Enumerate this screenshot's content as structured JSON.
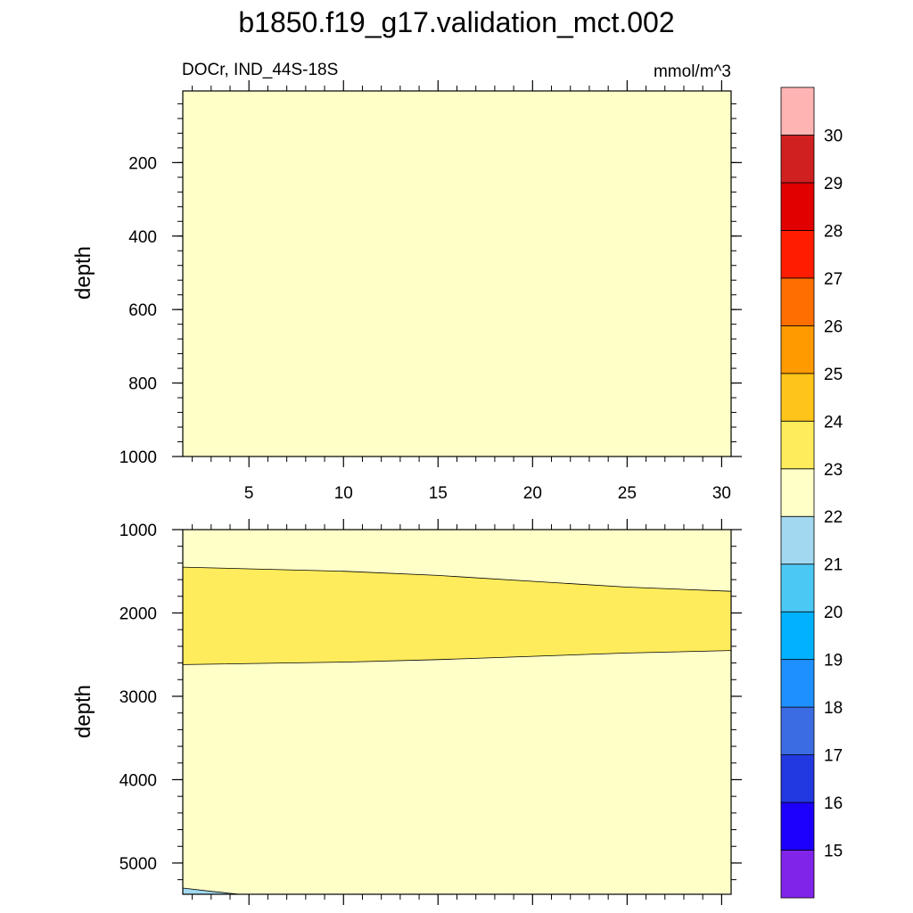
{
  "title": "b1850.f19_g17.validation_mct.002",
  "left_label": "DOCr, IND_44S-18S",
  "right_label": "mmol/m^3",
  "chart_data": {
    "type": "contour",
    "x": {
      "range": [
        1.5,
        30.5
      ],
      "ticks": [
        5,
        10,
        15,
        20,
        25,
        30
      ],
      "tick_labels": [
        "5",
        "10",
        "15",
        "20",
        "25",
        "30"
      ]
    },
    "panels": [
      {
        "ylabel": "depth",
        "ylim": [
          1000,
          5
        ],
        "yticks": [
          200,
          400,
          600,
          800,
          1000
        ],
        "ytick_labels": [
          "200",
          "400",
          "600",
          "800",
          "1000"
        ],
        "background_level": "22-23",
        "regions": []
      },
      {
        "ylabel": "depth",
        "ylim": [
          5375,
          1000
        ],
        "yticks": [
          1000,
          2000,
          3000,
          4000,
          5000
        ],
        "ytick_labels": [
          "1000",
          "2000",
          "3000",
          "4000",
          "5000"
        ],
        "background_level": "22-23",
        "regions": [
          {
            "level": "23-24",
            "upper": [
              [
                1.5,
                1450
              ],
              [
                10,
                1500
              ],
              [
                15,
                1550
              ],
              [
                20,
                1620
              ],
              [
                25,
                1690
              ],
              [
                30.5,
                1740
              ]
            ],
            "lower": [
              [
                1.5,
                2620
              ],
              [
                10,
                2590
              ],
              [
                15,
                2560
              ],
              [
                20,
                2520
              ],
              [
                25,
                2480
              ],
              [
                30.5,
                2450
              ]
            ]
          },
          {
            "level": "21-22",
            "upper": [
              [
                1.5,
                5300
              ],
              [
                3,
                5340
              ],
              [
                4.5,
                5375
              ]
            ],
            "lower": [
              [
                1.5,
                5375
              ]
            ]
          }
        ]
      }
    ],
    "colorbar": {
      "levels": [
        15,
        16,
        17,
        18,
        19,
        20,
        21,
        22,
        23,
        24,
        25,
        26,
        27,
        28,
        29,
        30
      ],
      "labels": [
        "15",
        "16",
        "17",
        "18",
        "19",
        "20",
        "21",
        "22",
        "23",
        "24",
        "25",
        "26",
        "27",
        "28",
        "29",
        "30"
      ],
      "colors": [
        "#8024EA",
        "#1C00FB",
        "#2238E0",
        "#3C6CE4",
        "#1E90FF",
        "#00B2FF",
        "#4CC8F4",
        "#A2D8F0",
        "#FFFFC8",
        "#FFEC5C",
        "#FFC41A",
        "#FF9A00",
        "#FF6E00",
        "#FF1C00",
        "#E00000",
        "#D02020",
        "#FFB4B4"
      ]
    }
  }
}
